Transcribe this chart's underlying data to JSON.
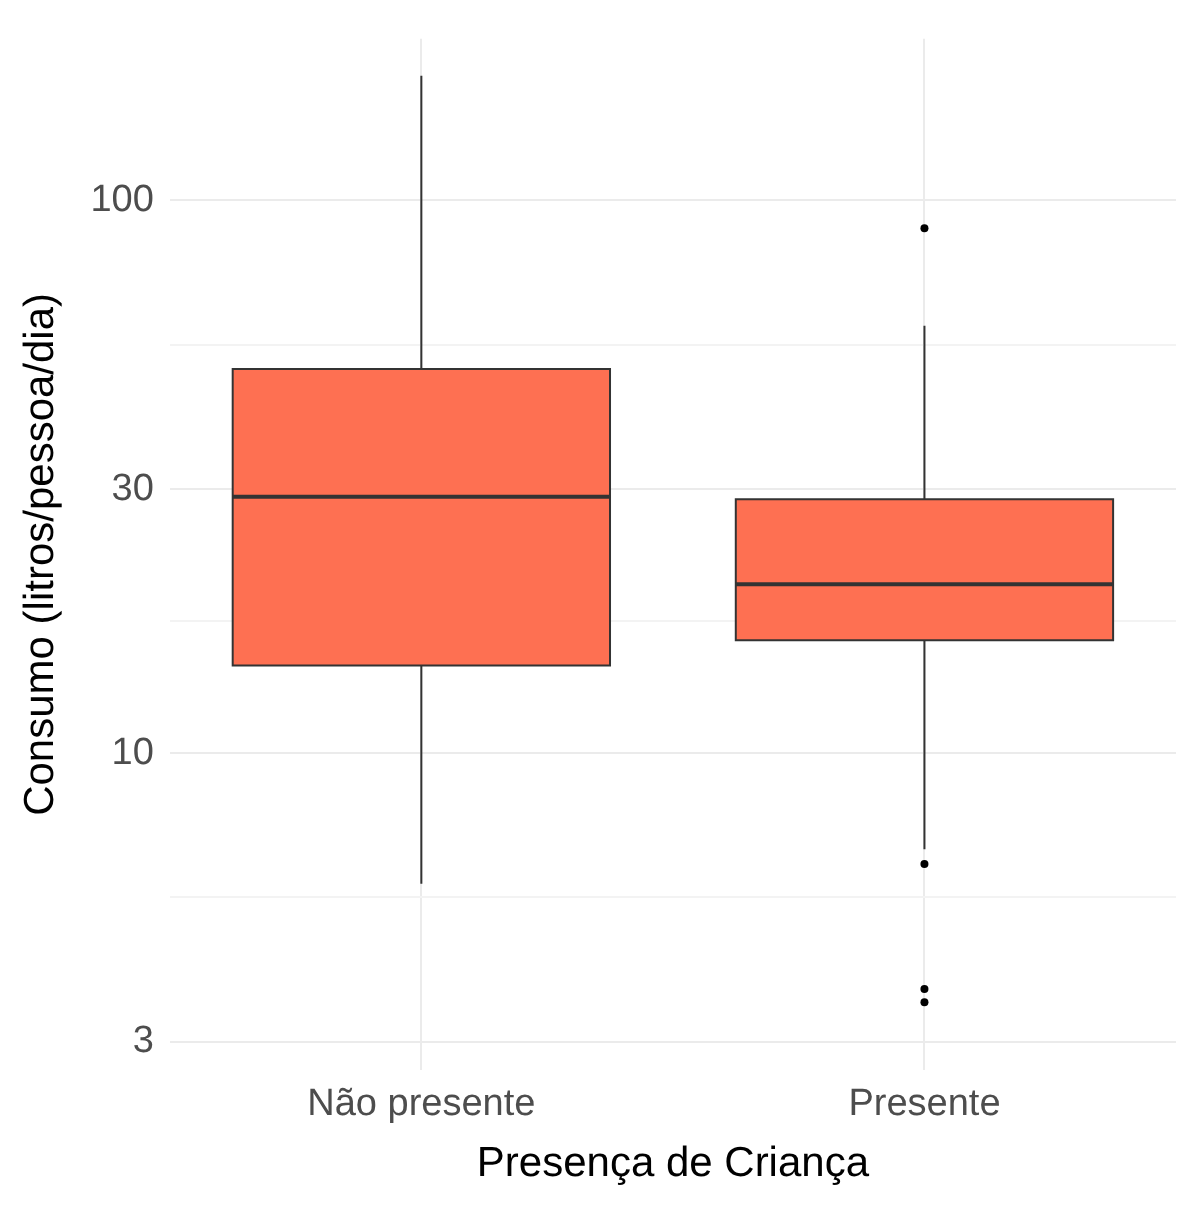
{
  "chart_data": {
    "type": "box",
    "xlabel": "Presença de Criança",
    "ylabel": "Consumo (litros/pessoa/dia)",
    "categories": [
      "Não presente",
      "Presente"
    ],
    "boxes": [
      {
        "low": 5.8,
        "q1": 14.4,
        "median": 29.1,
        "q3": 49.5,
        "high": 168
      },
      {
        "low": 6.7,
        "q1": 16,
        "median": 20.2,
        "q3": 28.8,
        "high": 59.3,
        "outliers": [
          89,
          6.3,
          3.74,
          3.54
        ]
      }
    ],
    "color": "#fe7052",
    "log": "y",
    "ylim": [
      2.67,
      196
    ],
    "yticks": [
      3,
      {
        "value": 5.48,
        "label": null
      },
      10,
      {
        "value": 17.3,
        "label": null
      },
      30,
      {
        "value": 54.8,
        "label": null
      },
      100
    ],
    "grid": true,
    "legend": false
  }
}
